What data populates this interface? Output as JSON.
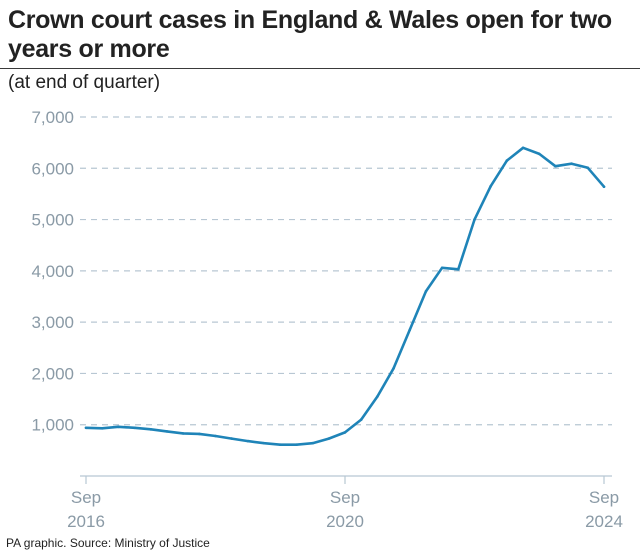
{
  "header": {
    "title": "Crown court cases in England & Wales open for two years or more",
    "subtitle": "(at end of quarter)"
  },
  "footer": {
    "source": "PA graphic. Source: Ministry of Justice"
  },
  "colors": {
    "line": "#1f84b8",
    "grid": "#b8c7d3",
    "tick": "#8a9aa6"
  },
  "chart_data": {
    "type": "line",
    "title": "Crown court cases in England & Wales open for two years or more",
    "subtitle": "(at end of quarter)",
    "ylim": [
      0,
      7000
    ],
    "yticks": [
      1000,
      2000,
      3000,
      4000,
      5000,
      6000,
      7000
    ],
    "ytick_labels": [
      "1,000",
      "2,000",
      "3,000",
      "4,000",
      "5,000",
      "6,000",
      "7,000"
    ],
    "grid": "horizontal dashed",
    "x_ticks": [
      {
        "label_line1": "Sep",
        "label_line2": "2016",
        "index": 0
      },
      {
        "label_line1": "Sep",
        "label_line2": "2020",
        "index": 16
      },
      {
        "label_line1": "Sep",
        "label_line2": "2024",
        "index": 32
      }
    ],
    "x": [
      "Sep 2016",
      "Dec 2016",
      "Mar 2017",
      "Jun 2017",
      "Sep 2017",
      "Dec 2017",
      "Mar 2018",
      "Jun 2018",
      "Sep 2018",
      "Dec 2018",
      "Mar 2019",
      "Jun 2019",
      "Sep 2019",
      "Dec 2019",
      "Mar 2020",
      "Jun 2020",
      "Sep 2020",
      "Dec 2020",
      "Mar 2021",
      "Jun 2021",
      "Sep 2021",
      "Dec 2021",
      "Mar 2022",
      "Jun 2022",
      "Sep 2022",
      "Dec 2022",
      "Mar 2023",
      "Jun 2023",
      "Sep 2023",
      "Dec 2023",
      "Mar 2024",
      "Jun 2024",
      "Sep 2024"
    ],
    "series": [
      {
        "values": [
          940,
          930,
          960,
          940,
          910,
          870,
          830,
          820,
          780,
          730,
          680,
          640,
          610,
          610,
          640,
          730,
          850,
          1100,
          1550,
          2100,
          2850,
          3600,
          4060,
          4030,
          5000,
          5650,
          6150,
          6400,
          6280,
          6040,
          6090,
          6010,
          5640
        ]
      }
    ]
  }
}
